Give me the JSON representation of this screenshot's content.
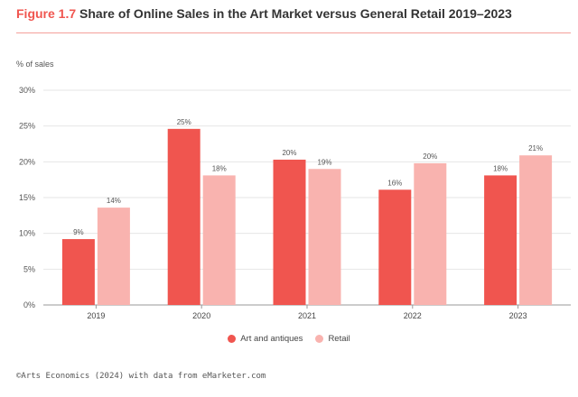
{
  "header": {
    "figure_number": "Figure 1.7",
    "title_text": "Share of Online Sales in the Art Market versus General Retail 2019–2023"
  },
  "source": "©Arts Economics (2024) with data from eMarketer.com",
  "chart_data": {
    "type": "bar",
    "title": "Share of Online Sales in the Art Market versus General Retail 2019–2023",
    "ylabel": "% of sales",
    "xlabel": "",
    "categories": [
      "2019",
      "2020",
      "2021",
      "2022",
      "2023"
    ],
    "ylim": [
      0,
      30
    ],
    "yticks": [
      0,
      5,
      10,
      15,
      20,
      25,
      30
    ],
    "ytick_labels": [
      "0%",
      "5%",
      "10%",
      "15%",
      "20%",
      "25%",
      "30%"
    ],
    "value_suffix": "%",
    "grid": true,
    "legend_position": "bottom-center",
    "series": [
      {
        "name": "Art and antiques",
        "color": "#f0554f",
        "values": [
          9.2,
          24.6,
          20.3,
          16.1,
          18.1
        ],
        "labels": [
          "9%",
          "25%",
          "20%",
          "16%",
          "18%"
        ]
      },
      {
        "name": "Retail",
        "color": "#f9b3af",
        "values": [
          13.6,
          18.1,
          19.0,
          19.8,
          20.9
        ],
        "labels": [
          "14%",
          "18%",
          "19%",
          "20%",
          "21%"
        ]
      }
    ]
  }
}
